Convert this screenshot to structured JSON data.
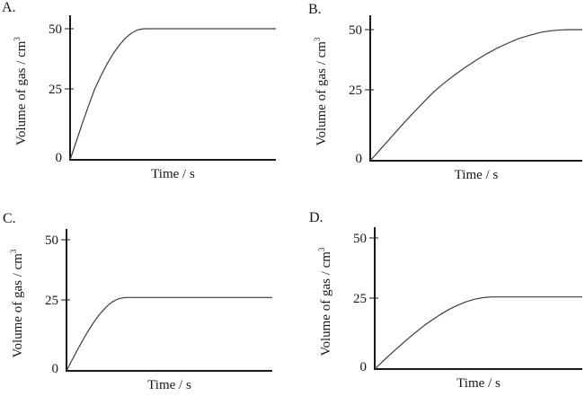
{
  "style": {
    "background": "#ffffff",
    "text_color": "#161616",
    "axis_color": "#1a1a1a",
    "curve_color": "#3d3d3d"
  },
  "chart_data": [
    {
      "id": "A",
      "title": "A.",
      "type": "line",
      "xlabel": "Time / s",
      "ylabel": "Volume of gas / cm³",
      "yticks": [
        0,
        25,
        50
      ],
      "xticks": [],
      "ylim": [
        0,
        55
      ],
      "x_normalized_range": [
        0,
        1
      ],
      "plateau_volume": 50,
      "plateau_reached_at_fraction_of_time_axis": 0.36,
      "points": [
        [
          0,
          0
        ],
        [
          0.03,
          6.5
        ],
        [
          0.06,
          12.9
        ],
        [
          0.09,
          19.1
        ],
        [
          0.12,
          25.0
        ],
        [
          0.15,
          30.4
        ],
        [
          0.18,
          35.4
        ],
        [
          0.21,
          39.7
        ],
        [
          0.24,
          43.3
        ],
        [
          0.27,
          46.2
        ],
        [
          0.3,
          48.3
        ],
        [
          0.33,
          49.6
        ],
        [
          0.36,
          50
        ],
        [
          0.45,
          50
        ],
        [
          0.6,
          50
        ],
        [
          0.8,
          50
        ],
        [
          1,
          50
        ]
      ]
    },
    {
      "id": "B",
      "title": "B.",
      "type": "line",
      "xlabel": "Time / s",
      "ylabel": "Volume of gas / cm³",
      "yticks": [
        0,
        25,
        50
      ],
      "xticks": [],
      "ylim": [
        0,
        55
      ],
      "x_normalized_range": [
        0,
        1
      ],
      "plateau_volume": 50,
      "plateau_reached_at_fraction_of_time_axis": 0.93,
      "points": [
        [
          0,
          0
        ],
        [
          0.05,
          4.2
        ],
        [
          0.1,
          8.4
        ],
        [
          0.15,
          12.6
        ],
        [
          0.2,
          16.6
        ],
        [
          0.25,
          20.5
        ],
        [
          0.3,
          24.3
        ],
        [
          0.35,
          27.9
        ],
        [
          0.4,
          31.3
        ],
        [
          0.45,
          34.4
        ],
        [
          0.5,
          37.3
        ],
        [
          0.55,
          40.0
        ],
        [
          0.6,
          42.4
        ],
        [
          0.65,
          44.4
        ],
        [
          0.7,
          46.3
        ],
        [
          0.75,
          47.6
        ],
        [
          0.8,
          48.8
        ],
        [
          0.85,
          49.5
        ],
        [
          0.9,
          49.9
        ],
        [
          0.93,
          50
        ],
        [
          1,
          50
        ]
      ]
    },
    {
      "id": "C",
      "title": "C.",
      "type": "line",
      "xlabel": "Time / s",
      "ylabel": "Volume of gas / cm³",
      "yticks": [
        0,
        25,
        50
      ],
      "xticks": [],
      "ylim": [
        0,
        55
      ],
      "x_normalized_range": [
        0,
        1
      ],
      "plateau_volume": 26,
      "plateau_reached_at_fraction_of_time_axis": 0.29,
      "points": [
        [
          0,
          0
        ],
        [
          0.025,
          3.5
        ],
        [
          0.05,
          7.0
        ],
        [
          0.075,
          10.3
        ],
        [
          0.1,
          13.4
        ],
        [
          0.125,
          16.3
        ],
        [
          0.15,
          18.9
        ],
        [
          0.175,
          21.1
        ],
        [
          0.2,
          23.0
        ],
        [
          0.225,
          24.4
        ],
        [
          0.25,
          25.4
        ],
        [
          0.275,
          25.9
        ],
        [
          0.29,
          26
        ],
        [
          0.4,
          26
        ],
        [
          0.55,
          26
        ],
        [
          0.7,
          26
        ],
        [
          0.85,
          26
        ],
        [
          1,
          26
        ]
      ]
    },
    {
      "id": "D",
      "title": "D.",
      "type": "line",
      "xlabel": "Time / s",
      "ylabel": "Volume of gas / cm³",
      "yticks": [
        0,
        25,
        50
      ],
      "xticks": [],
      "ylim": [
        0,
        55
      ],
      "x_normalized_range": [
        0,
        1
      ],
      "plateau_volume": 25.5,
      "plateau_reached_at_fraction_of_time_axis": 0.58,
      "points": [
        [
          0,
          0
        ],
        [
          0.04,
          2.8
        ],
        [
          0.08,
          5.5
        ],
        [
          0.12,
          8.1
        ],
        [
          0.16,
          10.7
        ],
        [
          0.2,
          13.1
        ],
        [
          0.24,
          15.4
        ],
        [
          0.28,
          17.5
        ],
        [
          0.32,
          19.4
        ],
        [
          0.36,
          21.1
        ],
        [
          0.4,
          22.5
        ],
        [
          0.44,
          23.7
        ],
        [
          0.48,
          24.6
        ],
        [
          0.52,
          25.2
        ],
        [
          0.56,
          25.5
        ],
        [
          0.58,
          25.5
        ],
        [
          0.7,
          25.5
        ],
        [
          0.85,
          25.5
        ],
        [
          1,
          25.5
        ]
      ]
    }
  ]
}
